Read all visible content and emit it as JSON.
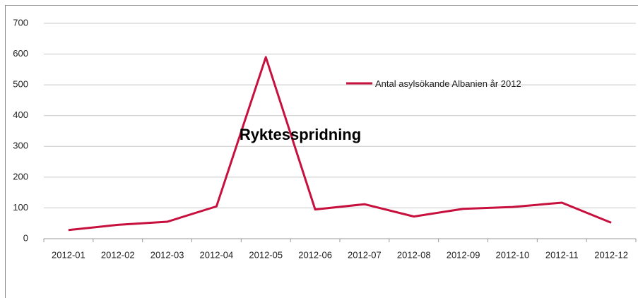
{
  "chart_data": {
    "type": "line",
    "categories": [
      "2012-01",
      "2012-02",
      "2012-03",
      "2012-04",
      "2012-05",
      "2012-06",
      "2012-07",
      "2012-08",
      "2012-09",
      "2012-10",
      "2012-11",
      "2012-12"
    ],
    "series": [
      {
        "name": "Antal asylsökande Albanien år 2012",
        "color": "#c8103e",
        "values": [
          28,
          45,
          55,
          105,
          590,
          95,
          112,
          72,
          97,
          103,
          117,
          52
        ]
      }
    ],
    "annotation": "Ryktesspridning",
    "ylim": [
      0,
      700
    ],
    "yticks": [
      0,
      100,
      200,
      300,
      400,
      500,
      600,
      700
    ],
    "grid": true,
    "legend": "top-right"
  }
}
